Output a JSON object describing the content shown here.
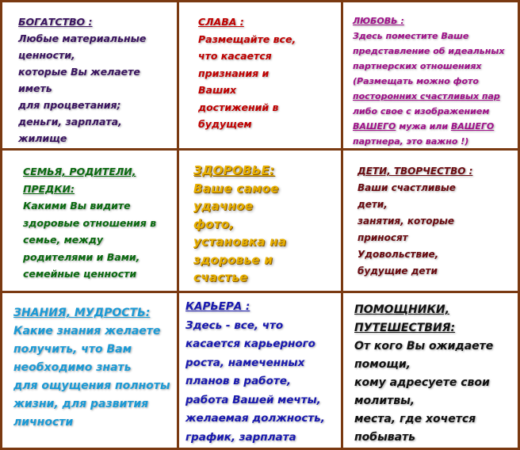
{
  "cells": [
    {
      "title": "БОГАТСТВО :",
      "lines": [
        "Любые материальные",
        "ценности,",
        "которые Вы желаете",
        "иметь",
        "для процветания;",
        "деньги, зарплата,",
        "жилище"
      ]
    },
    {
      "title": "СЛАВА :",
      "lines": [
        "Размещайте все,",
        "что касается",
        "признания и",
        "Ваших",
        "достижений в",
        "будущем"
      ]
    },
    {
      "title": "ЛЮБОВЬ :",
      "lines": [
        "Здесь поместите Ваше",
        "представление об идеальных",
        "партнерских отношениях",
        "(Размещать можно фото",
        "посторонних счастливых пар",
        "либо свое с изображением"
      ],
      "line7a": "ВАШЕГО",
      "line7b": " мужа или ",
      "line7c": "ВАШЕГО",
      "line8": "партнера, это важно !)"
    },
    {
      "title": "СЕМЬЯ, РОДИТЕЛИ,",
      "title2": "ПРЕДКИ:",
      "lines": [
        "Какими Вы видите",
        "здоровые отношения  в",
        "семье, между",
        "родителями и Вами,",
        "семейные ценности"
      ]
    },
    {
      "title": "ЗДОРОВЬЕ:",
      "lines": [
        "Ваше самое",
        "удачное",
        "фото,",
        "установка на",
        "здоровье и",
        "счастье"
      ]
    },
    {
      "title": "ДЕТИ, ТВОРЧЕСТВО :",
      "lines": [
        "Ваши счастливые",
        "дети,",
        "занятия, которые",
        "приносят",
        "Удовольствие,",
        "будущие дети"
      ]
    },
    {
      "title": "ЗНАНИЯ, МУДРОСТЬ:",
      "lines": [
        "Какие знания желаете",
        "получить, что Вам",
        "необходимо знать",
        "для ощущения полноты",
        "жизни, для развития",
        "личности"
      ]
    },
    {
      "title": "КАРЬЕРА :",
      "lines": [
        "Здесь - все, что",
        "касается карьерного",
        "роста, намеченных",
        "планов в работе,",
        "работа Вашей мечты,",
        "желаемая должность,",
        "график, зарплата"
      ]
    },
    {
      "title": "ПОМОЩНИКИ,",
      "title2": "ПУТЕШЕСТВИЯ:",
      "lines": [
        "От кого Вы ожидаете",
        "помощи,",
        "кому адресуете свои",
        "молитвы,",
        "места, где хочется",
        "побывать"
      ]
    }
  ]
}
